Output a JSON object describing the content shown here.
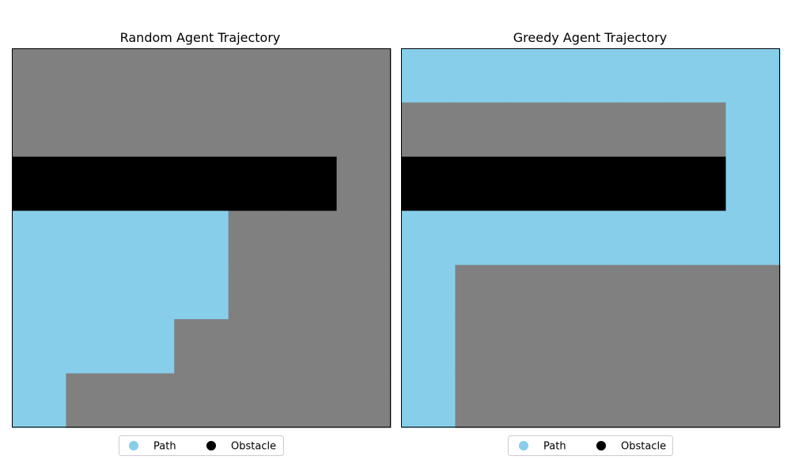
{
  "colors": {
    "path": "#87CEEB",
    "obstacle": "#000000",
    "unvisited": "#808080",
    "legend_border": "#cccccc"
  },
  "chart_data": [
    {
      "type": "heatmap",
      "title": "Random Agent Trajectory",
      "grid_rows": 7,
      "grid_cols": 7,
      "cells": [
        [
          0,
          0,
          0,
          0,
          0,
          0,
          0
        ],
        [
          0,
          0,
          0,
          0,
          0,
          0,
          0
        ],
        [
          2,
          2,
          2,
          2,
          2,
          2,
          0
        ],
        [
          1,
          1,
          1,
          1,
          0,
          0,
          0
        ],
        [
          1,
          1,
          1,
          1,
          0,
          0,
          0
        ],
        [
          1,
          1,
          1,
          0,
          0,
          0,
          0
        ],
        [
          1,
          0,
          0,
          0,
          0,
          0,
          0
        ]
      ],
      "cell_legend": {
        "0": "unvisited",
        "1": "Path",
        "2": "Obstacle"
      },
      "legend": [
        "Path",
        "Obstacle"
      ],
      "legend_position": "bottom-center"
    },
    {
      "type": "heatmap",
      "title": "Greedy Agent Trajectory",
      "grid_rows": 7,
      "grid_cols": 7,
      "cells": [
        [
          1,
          1,
          1,
          1,
          1,
          1,
          1
        ],
        [
          0,
          0,
          0,
          0,
          0,
          0,
          1
        ],
        [
          2,
          2,
          2,
          2,
          2,
          2,
          1
        ],
        [
          1,
          1,
          1,
          1,
          1,
          1,
          1
        ],
        [
          1,
          0,
          0,
          0,
          0,
          0,
          0
        ],
        [
          1,
          0,
          0,
          0,
          0,
          0,
          0
        ],
        [
          1,
          0,
          0,
          0,
          0,
          0,
          0
        ]
      ],
      "cell_legend": {
        "0": "unvisited",
        "1": "Path",
        "2": "Obstacle"
      },
      "legend": [
        "Path",
        "Obstacle"
      ],
      "legend_position": "bottom-center"
    }
  ]
}
